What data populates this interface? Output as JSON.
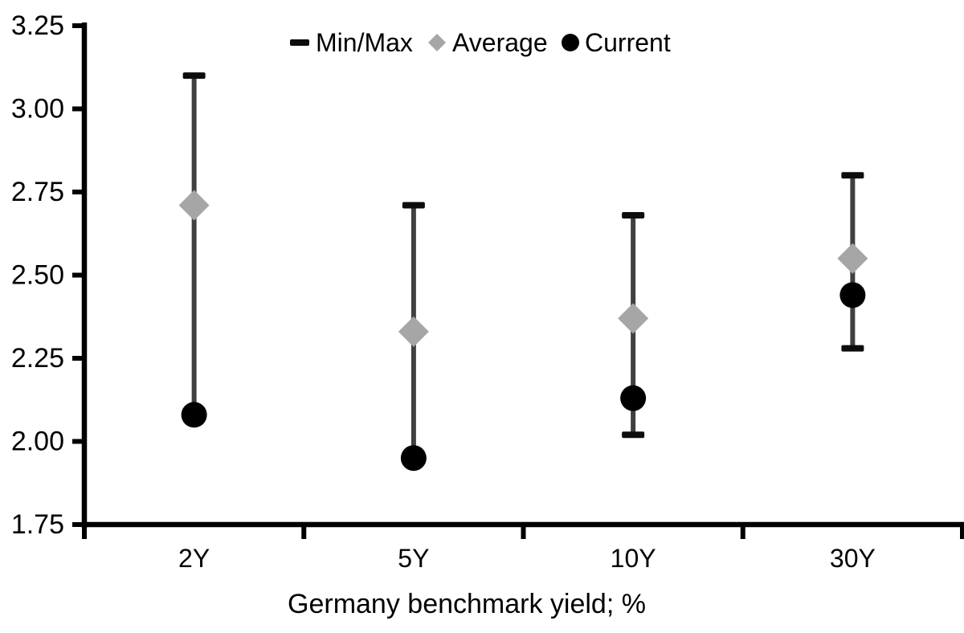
{
  "chart_data": {
    "type": "scatter",
    "subtype": "min-max-range-with-markers",
    "title": "",
    "xlabel": "Germany benchmark yield; %",
    "ylabel": "",
    "categories": [
      "2Y",
      "5Y",
      "10Y",
      "30Y"
    ],
    "series": [
      {
        "name": "Min/Max",
        "role": "range",
        "min": [
          2.08,
          1.95,
          2.02,
          2.28
        ],
        "max": [
          3.1,
          2.71,
          2.68,
          2.8
        ]
      },
      {
        "name": "Average",
        "role": "marker-diamond",
        "values": [
          2.71,
          2.33,
          2.37,
          2.55
        ]
      },
      {
        "name": "Current",
        "role": "marker-circle",
        "values": [
          2.08,
          1.95,
          2.13,
          2.44
        ]
      }
    ],
    "ylim": [
      1.75,
      3.25
    ],
    "ytick_step": 0.25,
    "yticks": [
      "3.25",
      "3.00",
      "2.75",
      "2.50",
      "2.25",
      "2.00",
      "1.75"
    ],
    "grid": false,
    "legend_position": "top-center",
    "legend": [
      {
        "label": "Min/Max",
        "marker": "dash-icon"
      },
      {
        "label": "Average",
        "marker": "diamond-icon"
      },
      {
        "label": "Current",
        "marker": "circle-icon"
      }
    ],
    "colors": {
      "background": "#ffffff",
      "axis": "#000000",
      "text": "#000000",
      "whisker_line": "#404040",
      "minmax_cap": "#0d0d0d",
      "average_marker": "#a6a6a6",
      "current_marker": "#000000"
    }
  }
}
